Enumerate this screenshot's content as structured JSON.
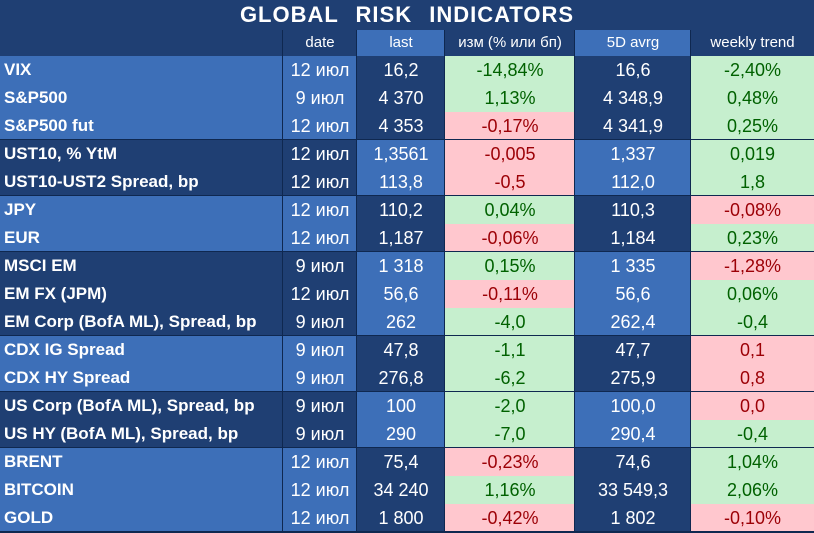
{
  "title": "GLOBAL   RISK   INDICATORS",
  "headers": {
    "date": "date",
    "last": "last",
    "change": "изм (% или бп)",
    "avg": "5D avrg",
    "trend": "weekly trend"
  },
  "colors": {
    "dark_band": "#1f3f73",
    "light_band": "#3d6fb8",
    "pos_fill": "#c6efce",
    "pos_text": "#006100",
    "neg_fill": "#ffc7ce",
    "neg_text": "#9c0006"
  },
  "groups": [
    {
      "band": "light",
      "rows": [
        {
          "name": "VIX",
          "date": "12 июл",
          "last": "16,2",
          "change": "-14,84%",
          "change_sign": "pos",
          "avg": "16,6",
          "trend": "-2,40%",
          "trend_sign": "pos"
        },
        {
          "name": "S&P500",
          "date": "9 июл",
          "last": "4 370",
          "change": "1,13%",
          "change_sign": "pos",
          "avg": "4 348,9",
          "trend": "0,48%",
          "trend_sign": "pos"
        },
        {
          "name": "S&P500 fut",
          "date": "12 июл",
          "last": "4 353",
          "change": "-0,17%",
          "change_sign": "neg",
          "avg": "4 341,9",
          "trend": "0,25%",
          "trend_sign": "pos"
        }
      ]
    },
    {
      "band": "dark",
      "rows": [
        {
          "name": "UST10, % YtM",
          "date": "12 июл",
          "last": "1,3561",
          "change": "-0,005",
          "change_sign": "neg",
          "avg": "1,337",
          "trend": "0,019",
          "trend_sign": "pos"
        },
        {
          "name": "UST10-UST2 Spread, bp",
          "date": "12 июл",
          "last": "113,8",
          "change": "-0,5",
          "change_sign": "neg",
          "avg": "112,0",
          "trend": "1,8",
          "trend_sign": "pos"
        }
      ]
    },
    {
      "band": "light",
      "rows": [
        {
          "name": "JPY",
          "date": "12 июл",
          "last": "110,2",
          "change": "0,04%",
          "change_sign": "pos",
          "avg": "110,3",
          "trend": "-0,08%",
          "trend_sign": "neg"
        },
        {
          "name": "EUR",
          "date": "12 июл",
          "last": "1,187",
          "change": "-0,06%",
          "change_sign": "neg",
          "avg": "1,184",
          "trend": "0,23%",
          "trend_sign": "pos"
        }
      ]
    },
    {
      "band": "dark",
      "rows": [
        {
          "name": "MSCI EM",
          "date": "9 июл",
          "last": "1 318",
          "change": "0,15%",
          "change_sign": "pos",
          "avg": "1 335",
          "trend": "-1,28%",
          "trend_sign": "neg"
        },
        {
          "name": "EM FX (JPM)",
          "date": "12 июл",
          "last": "56,6",
          "change": "-0,11%",
          "change_sign": "neg",
          "avg": "56,6",
          "trend": "0,06%",
          "trend_sign": "pos"
        },
        {
          "name": "EM Corp (BofA ML), Spread, bp",
          "date": "9 июл",
          "last": "262",
          "change": "-4,0",
          "change_sign": "pos",
          "avg": "262,4",
          "trend": "-0,4",
          "trend_sign": "pos"
        }
      ]
    },
    {
      "band": "light",
      "rows": [
        {
          "name": "CDX IG Spread",
          "date": "9 июл",
          "last": "47,8",
          "change": "-1,1",
          "change_sign": "pos",
          "avg": "47,7",
          "trend": "0,1",
          "trend_sign": "neg"
        },
        {
          "name": "CDX HY Spread",
          "date": "9 июл",
          "last": "276,8",
          "change": "-6,2",
          "change_sign": "pos",
          "avg": "275,9",
          "trend": "0,8",
          "trend_sign": "neg"
        }
      ]
    },
    {
      "band": "dark",
      "rows": [
        {
          "name": "US Corp (BofA ML), Spread, bp",
          "date": "9 июл",
          "last": "100",
          "change": "-2,0",
          "change_sign": "pos",
          "avg": "100,0",
          "trend": "0,0",
          "trend_sign": "neg"
        },
        {
          "name": "US HY (BofA ML), Spread, bp",
          "date": "9 июл",
          "last": "290",
          "change": "-7,0",
          "change_sign": "pos",
          "avg": "290,4",
          "trend": "-0,4",
          "trend_sign": "pos"
        }
      ]
    },
    {
      "band": "light",
      "rows": [
        {
          "name": "BRENT",
          "date": "12 июл",
          "last": "75,4",
          "change": "-0,23%",
          "change_sign": "neg",
          "avg": "74,6",
          "trend": "1,04%",
          "trend_sign": "pos"
        },
        {
          "name": "BITCOIN",
          "date": "12 июл",
          "last": "34 240",
          "change": "1,16%",
          "change_sign": "pos",
          "avg": "33 549,3",
          "trend": "2,06%",
          "trend_sign": "pos"
        },
        {
          "name": "GOLD",
          "date": "12 июл",
          "last": "1 800",
          "change": "-0,42%",
          "change_sign": "neg",
          "avg": "1 802",
          "trend": "-0,10%",
          "trend_sign": "neg"
        }
      ]
    }
  ]
}
